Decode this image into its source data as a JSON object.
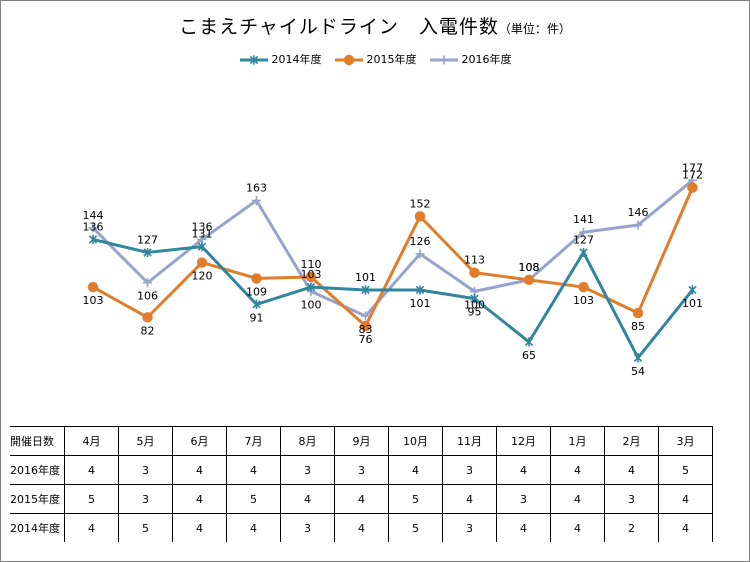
{
  "chart_data": {
    "type": "line",
    "title": "こまえチャイルドライン　入電件数",
    "unit_note": "（単位：件）",
    "categories": [
      "4月",
      "5月",
      "6月",
      "7月",
      "8月",
      "9月",
      "10月",
      "11月",
      "12月",
      "1月",
      "2月",
      "3月"
    ],
    "series": [
      {
        "name": "2014年度",
        "color": "#31859C",
        "marker": "x",
        "values": [
          136,
          127,
          131,
          91,
          103,
          101,
          101,
          95,
          65,
          127,
          54,
          101
        ]
      },
      {
        "name": "2015年度",
        "color": "#E07C2A",
        "marker": "circle",
        "values": [
          103,
          82,
          120,
          109,
          110,
          76,
          152,
          113,
          108,
          103,
          85,
          172
        ]
      },
      {
        "name": "2016年度",
        "color": "#95A3CD",
        "marker": "plus",
        "values": [
          144,
          106,
          136,
          163,
          100,
          83,
          126,
          100,
          108,
          141,
          146,
          177
        ]
      }
    ],
    "legend_position": "top",
    "grid": false
  },
  "table": {
    "header_label": "開催日数",
    "rows": [
      {
        "label": "2016年度",
        "values": [
          "4",
          "3",
          "4",
          "4",
          "3",
          "3",
          "4",
          "3",
          "4",
          "4",
          "4",
          "5"
        ]
      },
      {
        "label": "2015年度",
        "values": [
          "5",
          "3",
          "4",
          "5",
          "4",
          "4",
          "5",
          "4",
          "3",
          "4",
          "3",
          "4"
        ]
      },
      {
        "label": "2014年度",
        "values": [
          "4",
          "5",
          "4",
          "4",
          "3",
          "4",
          "5",
          "3",
          "4",
          "4",
          "2",
          "4"
        ]
      }
    ]
  }
}
